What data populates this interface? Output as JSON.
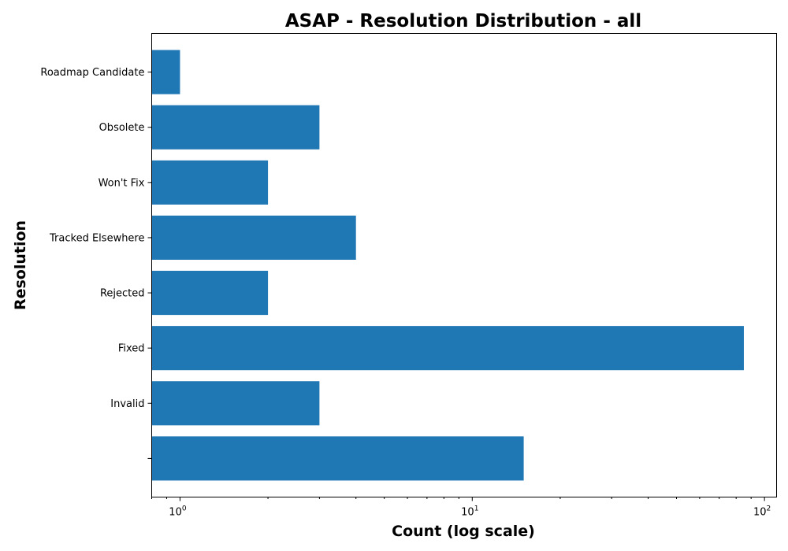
{
  "chart_data": {
    "type": "bar",
    "orientation": "horizontal",
    "title": "ASAP - Resolution Distribution - all",
    "xlabel": "Count (log scale)",
    "ylabel": "Resolution",
    "xscale": "log",
    "xlim": [
      0.8,
      110
    ],
    "x_ticks": [
      {
        "value": 1,
        "mantissa": "10",
        "exponent": "0"
      },
      {
        "value": 10,
        "mantissa": "10",
        "exponent": "1"
      },
      {
        "value": 100,
        "mantissa": "10",
        "exponent": "2"
      }
    ],
    "categories": [
      "",
      "Invalid",
      "Fixed",
      "Rejected",
      "Tracked Elsewhere",
      "Won't Fix",
      "Obsolete",
      "Roadmap Candidate"
    ],
    "values": [
      15,
      3,
      85,
      2,
      4,
      2,
      3,
      1
    ],
    "colors": {
      "bar": "#1f77b4"
    },
    "grid": false,
    "legend": false
  }
}
